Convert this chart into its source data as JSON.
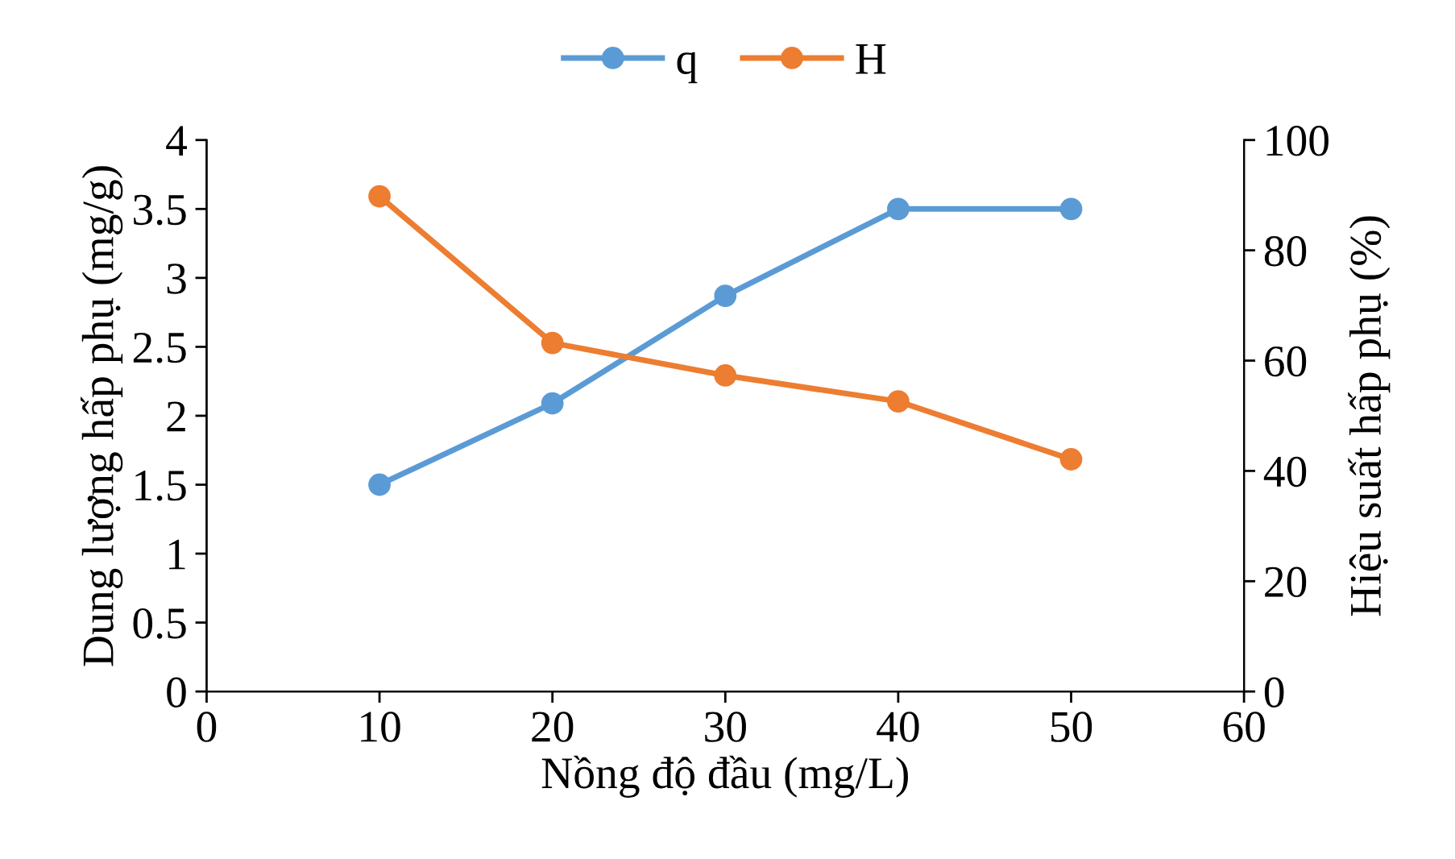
{
  "chart_data": {
    "type": "line",
    "xlabel": "Nồng độ đầu (mg/L)",
    "ylabel": "Dung lượng hấp phụ (mg/g)",
    "y2label": "Hiệu suất hấp phụ (%)",
    "x": [
      10,
      20,
      30,
      40,
      50
    ],
    "series": [
      {
        "name": "q",
        "color": "#5b9bd5",
        "values": [
          1.5,
          2.09,
          2.87,
          3.5,
          3.5
        ]
      },
      {
        "name": "H",
        "color": "#ed7d31",
        "values": [
          89.8,
          63.2,
          57.3,
          52.6,
          42.1
        ],
        "axis": "y2"
      }
    ],
    "xlim": [
      0,
      60
    ],
    "xticks": [
      0,
      10,
      20,
      30,
      40,
      50,
      60
    ],
    "ylim": [
      0,
      4
    ],
    "yticks": [
      0,
      0.5,
      1,
      1.5,
      2,
      2.5,
      3,
      3.5,
      4
    ],
    "y2lim": [
      0,
      100
    ],
    "y2ticks": [
      0,
      20,
      40,
      60,
      80,
      100
    ],
    "marker": "circle",
    "line_style": "solid",
    "legend": "top",
    "grid": false
  }
}
